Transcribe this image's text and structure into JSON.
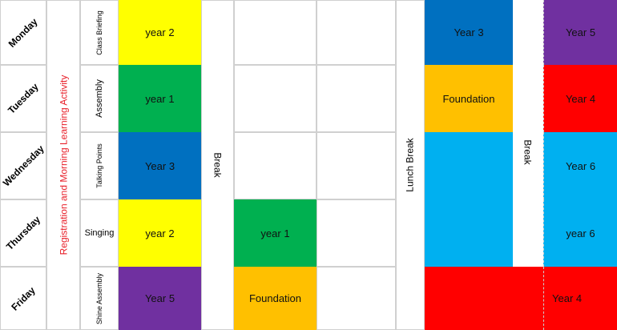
{
  "timetable": {
    "registration": "Registration and Morning Learning Activity",
    "break_label": "Break",
    "lunch_label": "Lunch Break",
    "rows": [
      {
        "day": "Monday",
        "activity": "Class Briefing",
        "slots": [
          {
            "text": "year 2",
            "color": "#ffff00"
          },
          null,
          null,
          {
            "text": "Year 3",
            "color": "#0070c0"
          },
          {
            "text": "Year 5",
            "color": "#7030a0"
          }
        ]
      },
      {
        "day": "Tuesday",
        "activity": "Assembly",
        "slots": [
          {
            "text": "year 1",
            "color": "#00b050"
          },
          null,
          null,
          {
            "text": "Foundation",
            "color": "#ffc000"
          },
          {
            "text": "Year 4",
            "color": "#ff0000"
          }
        ]
      },
      {
        "day": "Wednesday",
        "activity": "Talking Points",
        "slots": [
          {
            "text": "Year 3",
            "color": "#0070c0"
          },
          null,
          null,
          {
            "color": "#00b0f0"
          },
          {
            "text": "Year 6",
            "color": "#00b0f0"
          }
        ]
      },
      {
        "day": "Thursday",
        "activity": "Singing",
        "slots": [
          {
            "text": "year 2",
            "color": "#ffff00"
          },
          {
            "text": "year 1",
            "color": "#00b050"
          },
          null,
          {
            "color": "#00b0f0"
          },
          {
            "text": "year 6",
            "color": "#00b0f0"
          }
        ]
      },
      {
        "day": "Friday",
        "activity": "Shine Assembly",
        "slots": [
          {
            "text": "Year 5",
            "color": "#7030a0"
          },
          {
            "text": "Foundation",
            "color": "#ffc000"
          },
          null,
          {
            "color": "#ff0000"
          },
          {
            "text": "Year 4",
            "color": "#ff0000"
          }
        ]
      }
    ]
  }
}
